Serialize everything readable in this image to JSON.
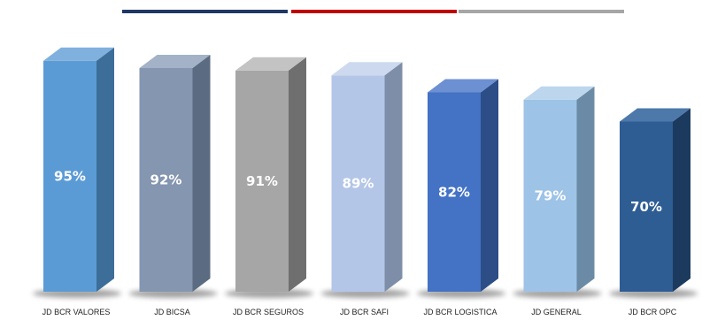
{
  "chart_data": {
    "type": "bar",
    "title": "",
    "xlabel": "",
    "ylabel": "",
    "ylim": [
      0,
      100
    ],
    "grid": false,
    "categories": [
      "JD BCR VALORES",
      "JD BICSA",
      "JD BCR SEGUROS",
      "JD BCR SAFI",
      "JD BCR LOGISTICA",
      "JD GENERAL",
      "JD BCR OPC"
    ],
    "values": [
      95,
      92,
      91,
      89,
      82,
      79,
      70
    ],
    "value_labels": [
      "95%",
      "92%",
      "91%",
      "89%",
      "82%",
      "79%",
      "70%"
    ],
    "bar_colors": [
      {
        "front": "#5b9bd5",
        "side": "#3c6e99",
        "top": "#7fb0de"
      },
      {
        "front": "#8496b0",
        "side": "#5b6b82",
        "top": "#a3b2c6"
      },
      {
        "front": "#a6a6a6",
        "side": "#6f6f6f",
        "top": "#c3c3c3"
      },
      {
        "front": "#b4c6e7",
        "side": "#7f8ea8",
        "top": "#cdd9ee"
      },
      {
        "front": "#4472c4",
        "side": "#2c4d86",
        "top": "#6c90d2"
      },
      {
        "front": "#9dc3e6",
        "side": "#6b8aa6",
        "top": "#bcd6ee"
      },
      {
        "front": "#2e5d94",
        "side": "#1c3a5e",
        "top": "#4d78aa"
      }
    ],
    "decor_lines": [
      {
        "color": "#1f3864"
      },
      {
        "color": "#c00000"
      },
      {
        "color": "#a6a6a6"
      }
    ]
  }
}
